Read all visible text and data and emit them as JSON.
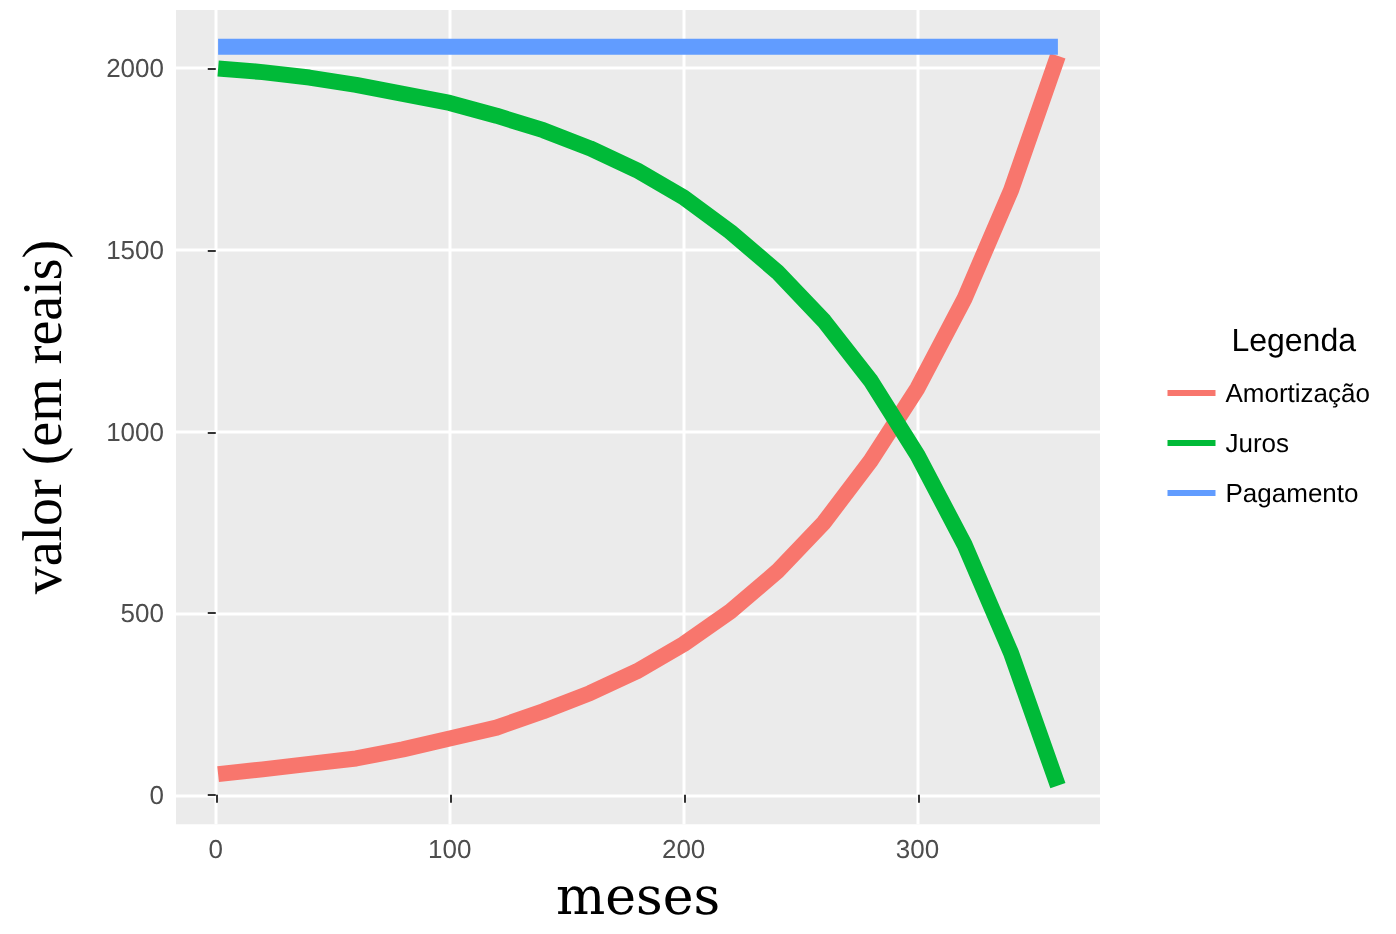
{
  "chart_data": {
    "type": "line",
    "xlabel": "meses",
    "ylabel": "valor (em reais)",
    "legend_title": "Legenda",
    "x": [
      1,
      20,
      40,
      60,
      80,
      100,
      120,
      140,
      160,
      180,
      200,
      220,
      240,
      260,
      280,
      300,
      320,
      340,
      360
    ],
    "series": [
      {
        "name": "Amortização",
        "color": "#f8766d",
        "values": [
          57,
          70,
          85,
          100,
          125,
          155,
          185,
          230,
          280,
          340,
          415,
          505,
          615,
          750,
          920,
          1120,
          1365,
          1665,
          2035
        ]
      },
      {
        "name": "Juros",
        "color": "#00ba38",
        "values": [
          2000,
          1990,
          1975,
          1955,
          1930,
          1905,
          1870,
          1830,
          1780,
          1720,
          1645,
          1550,
          1440,
          1305,
          1140,
          935,
          690,
          390,
          25
        ]
      },
      {
        "name": "Pagamento",
        "color": "#619cff",
        "values": [
          2060,
          2060,
          2060,
          2060,
          2060,
          2060,
          2060,
          2060,
          2060,
          2060,
          2060,
          2060,
          2060,
          2060,
          2060,
          2060,
          2060,
          2060,
          2060
        ]
      }
    ],
    "xlim": [
      -17,
      378
    ],
    "xticks": [
      0,
      100,
      200,
      300
    ],
    "ylim": [
      -81,
      2161
    ],
    "yticks": [
      0,
      500,
      1000,
      1500,
      2000
    ],
    "grid": true,
    "legend": "right",
    "marker": "none",
    "line_style": "solid"
  }
}
